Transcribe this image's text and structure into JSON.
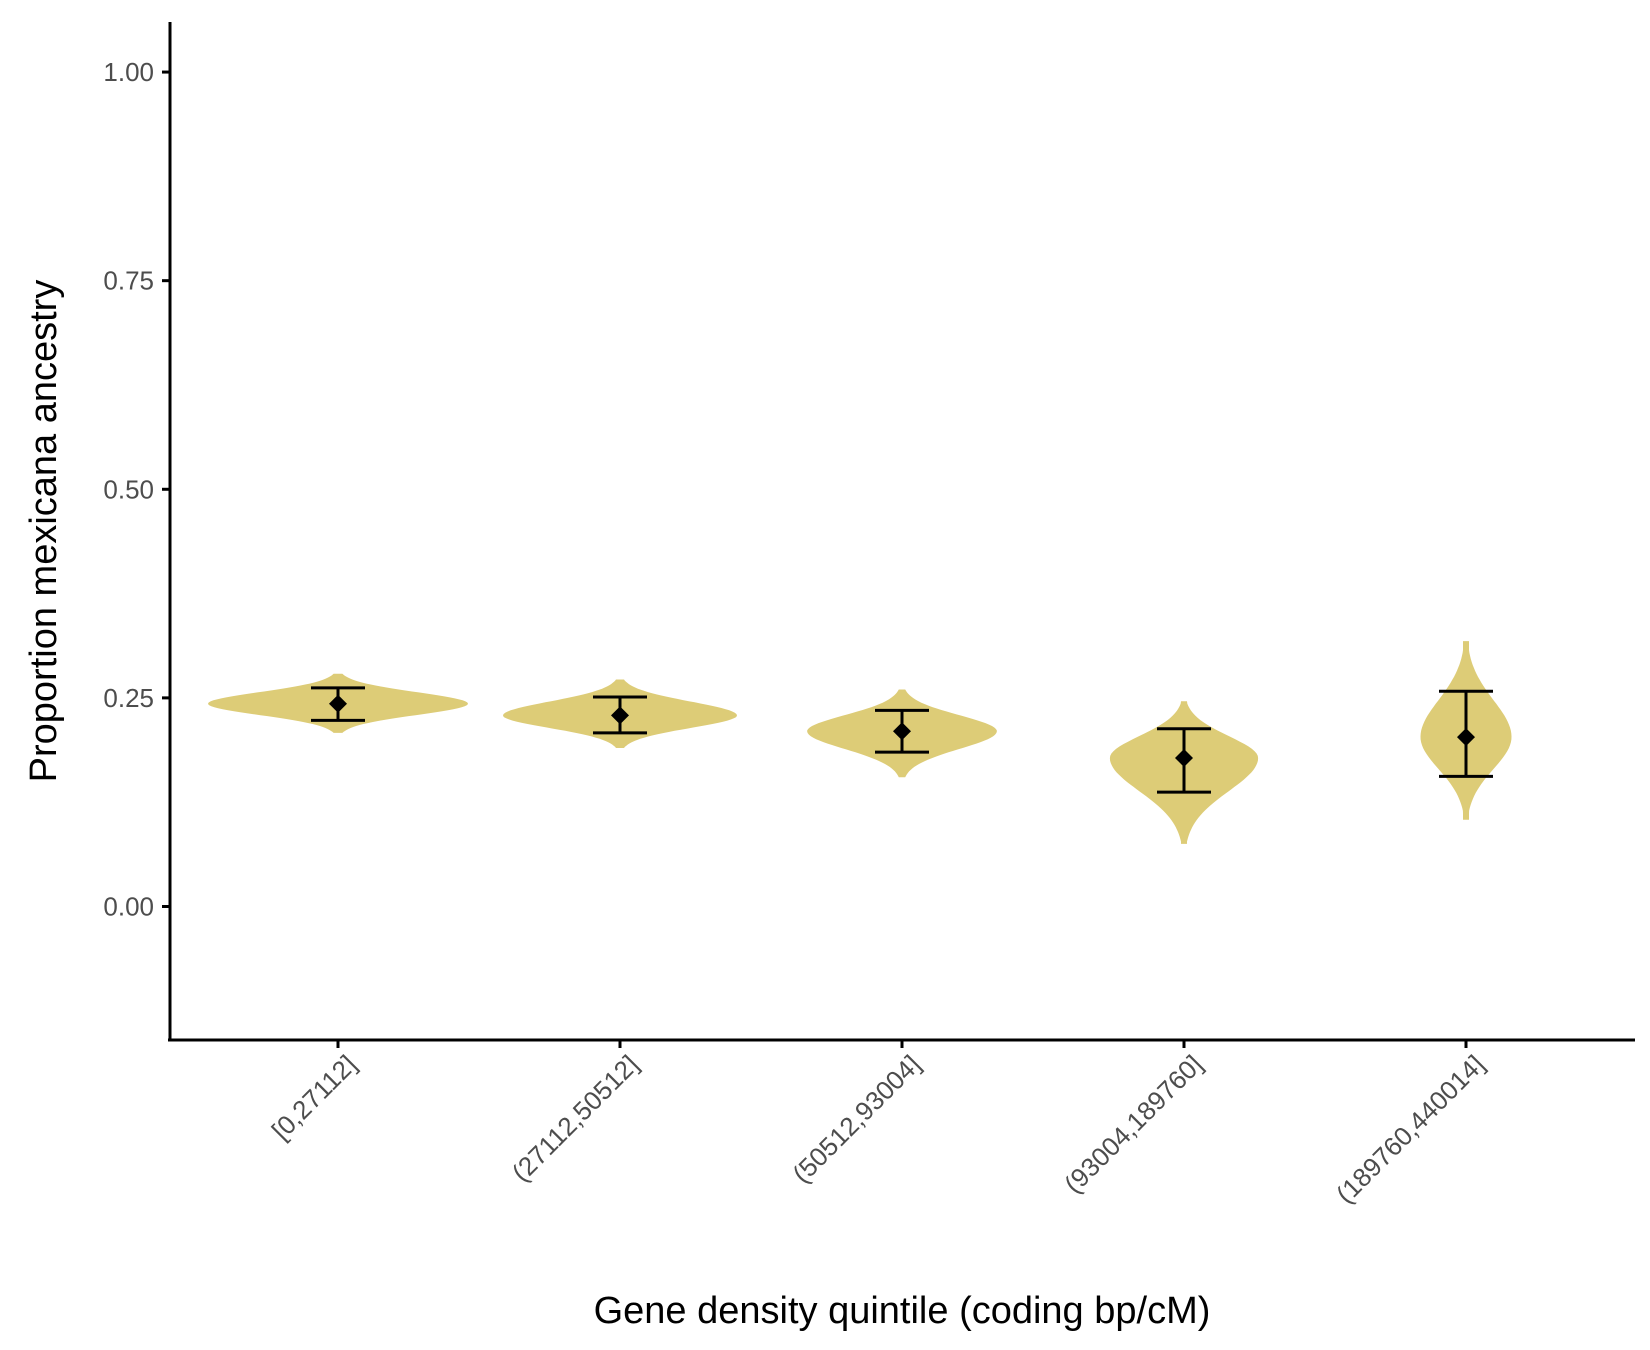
{
  "chart_data": {
    "type": "violin",
    "xlabel": "Gene density quintile (coding bp/cM)",
    "ylabel": "Proportion mexicana ancestry",
    "ylim": [
      -0.16,
      1.06
    ],
    "yticks": [
      0.0,
      0.25,
      0.5,
      0.75,
      1.0
    ],
    "ytick_labels": [
      "0.00",
      "0.25",
      "0.50",
      "0.75",
      "1.00"
    ],
    "categories": [
      "[0,27112]",
      "(27112,50512]",
      "(50512,93004]",
      "(93004,189760]",
      "(189760,440014]"
    ],
    "means": [
      0.243,
      0.229,
      0.21,
      0.178,
      0.203
    ],
    "ci_lower": [
      0.223,
      0.208,
      0.185,
      0.137,
      0.156
    ],
    "ci_upper": [
      0.262,
      0.251,
      0.235,
      0.213,
      0.258
    ],
    "violin_min": [
      0.208,
      0.19,
      0.155,
      0.075,
      0.104
    ],
    "violin_max": [
      0.279,
      0.272,
      0.26,
      0.246,
      0.318
    ],
    "violin_halfwidth_relative": [
      1.0,
      0.9,
      0.73,
      0.57,
      0.35
    ],
    "grid": false,
    "legend": "none",
    "colors": {
      "violin": "#ddcc77",
      "mean_marker": "#000000",
      "errorbar": "#000000",
      "axis": "#000000",
      "tick_text": "#4d4d4d"
    }
  }
}
